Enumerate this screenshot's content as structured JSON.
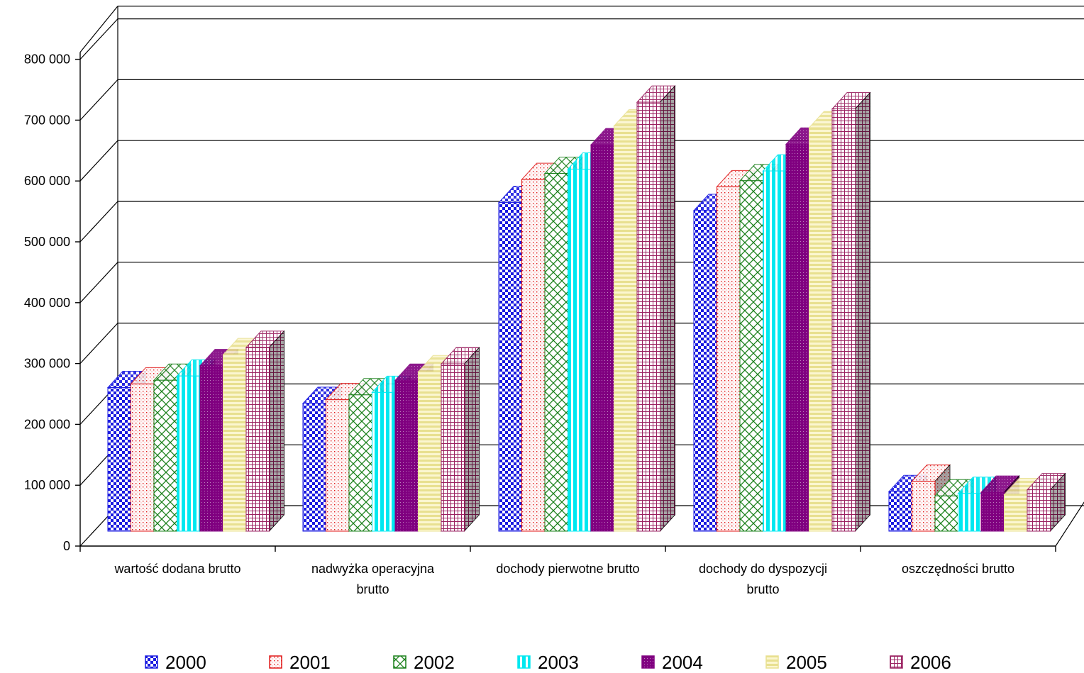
{
  "chart_data": {
    "type": "bar",
    "style": "3d-clustered",
    "categories": [
      [
        "wartość dodana brutto"
      ],
      [
        "nadwyżka operacyjna",
        "brutto"
      ],
      [
        "dochody pierwotne brutto"
      ],
      [
        "dochody do dyspozycji",
        "brutto"
      ],
      [
        "oszczędności brutto"
      ]
    ],
    "series": [
      {
        "name": "2000",
        "color": "#1a1ae0",
        "pattern": "checker",
        "values": [
          236000,
          210000,
          540000,
          527000,
          65000
        ]
      },
      {
        "name": "2001",
        "color": "#e01a1a",
        "pattern": "dots",
        "values": [
          242000,
          216000,
          578000,
          566000,
          82000
        ]
      },
      {
        "name": "2002",
        "color": "#1a801a",
        "pattern": "crosshatch",
        "values": [
          248000,
          224000,
          588000,
          576000,
          58000
        ]
      },
      {
        "name": "2003",
        "color": "#00e8f0",
        "pattern": "vstripes",
        "values": [
          255000,
          228000,
          595000,
          592000,
          62000
        ]
      },
      {
        "name": "2004",
        "color": "#800080",
        "pattern": "dense",
        "values": [
          272000,
          248000,
          635000,
          636000,
          64000
        ]
      },
      {
        "name": "2005",
        "color": "#e8e090",
        "pattern": "hstripes",
        "values": [
          290000,
          262000,
          666000,
          663000,
          60000
        ]
      },
      {
        "name": "2006",
        "color": "#9a2060",
        "pattern": "grid",
        "values": [
          302000,
          275000,
          705000,
          694000,
          68000
        ]
      }
    ],
    "yticks": [
      "0",
      "100 000",
      "200 000",
      "300 000",
      "400 000",
      "500 000",
      "600 000",
      "700 000",
      "800 000"
    ],
    "ylim": [
      0,
      800000
    ],
    "grid": true,
    "legend_position": "bottom"
  }
}
